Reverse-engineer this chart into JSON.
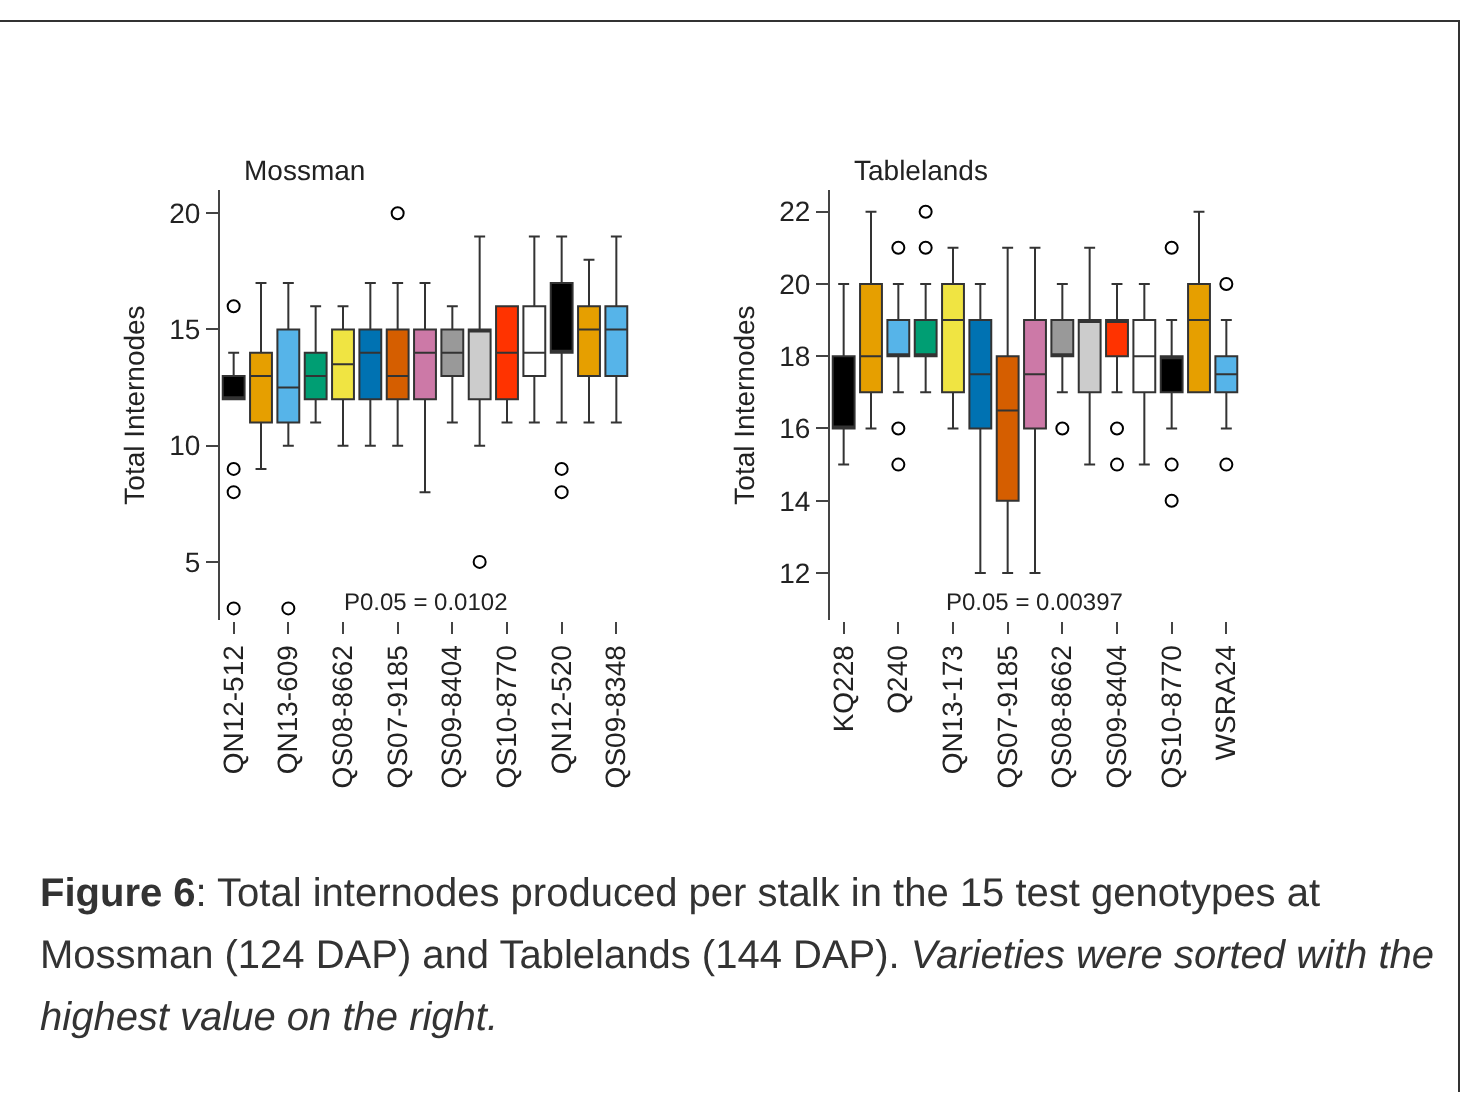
{
  "chart_data": [
    {
      "type": "box",
      "title": "Mossman",
      "ylabel": "Total Internodes",
      "categories": [
        "QN12-512",
        null,
        "QN13-609",
        null,
        "QS08-8662",
        null,
        "QS07-9185",
        null,
        "QS09-8404",
        null,
        "QS10-8770",
        null,
        "QN12-520",
        null,
        "QS09-8348"
      ],
      "colors": [
        "#000000",
        "#e69f00",
        "#56b4e9",
        "#009e73",
        "#f0e442",
        "#0072b2",
        "#d55e00",
        "#cc79a7",
        "#999999",
        "#cccccc",
        "#ff3300",
        "#ffffff",
        "#000000",
        "#e69f00",
        "#56b4e9"
      ],
      "boxes": [
        {
          "low": 12,
          "q1": 12,
          "median": 12,
          "q3": 13,
          "high": 14,
          "outliers": [
            16,
            9,
            8,
            3
          ]
        },
        {
          "low": 9,
          "q1": 11,
          "median": 13,
          "q3": 14,
          "high": 17
        },
        {
          "low": 10,
          "q1": 11,
          "median": 12.5,
          "q3": 15,
          "high": 17,
          "outliers": [
            3
          ]
        },
        {
          "low": 11,
          "q1": 12,
          "median": 13,
          "q3": 14,
          "high": 16
        },
        {
          "low": 10,
          "q1": 12,
          "median": 13.5,
          "q3": 15,
          "high": 16
        },
        {
          "low": 10,
          "q1": 12,
          "median": 14,
          "q3": 15,
          "high": 17
        },
        {
          "low": 10,
          "q1": 12,
          "median": 13,
          "q3": 15,
          "high": 17,
          "outliers": [
            20
          ]
        },
        {
          "low": 8,
          "q1": 12,
          "median": 14,
          "q3": 15,
          "high": 17
        },
        {
          "low": 11,
          "q1": 13,
          "median": 14,
          "q3": 15,
          "high": 16
        },
        {
          "low": 10,
          "q1": 12,
          "median": 15,
          "q3": 15,
          "high": 19,
          "outliers": [
            5
          ]
        },
        {
          "low": 11,
          "q1": 12,
          "median": 14,
          "q3": 16,
          "high": 16
        },
        {
          "low": 11,
          "q1": 13,
          "median": 14,
          "q3": 16,
          "high": 19
        },
        {
          "low": 11,
          "q1": 14,
          "median": 14,
          "q3": 17,
          "high": 19,
          "outliers": [
            9,
            8
          ]
        },
        {
          "low": 11,
          "q1": 13,
          "median": 15,
          "q3": 16,
          "high": 18
        },
        {
          "low": 11,
          "q1": 13,
          "median": 15,
          "q3": 16,
          "high": 19
        }
      ],
      "ylim": [
        2.5,
        21
      ],
      "yticks": [
        5,
        10,
        15,
        20
      ],
      "grid": false,
      "annotations": [
        "P0.05 = 0.0102"
      ]
    },
    {
      "type": "box",
      "title": "Tablelands",
      "ylabel": "Total Internodes",
      "categories": [
        "KQ228",
        null,
        "Q240",
        null,
        "QN13-173",
        null,
        "QS07-9185",
        null,
        "QS08-8662",
        null,
        "QS09-8404",
        null,
        "QS10-8770",
        null,
        "WSRA24"
      ],
      "colors": [
        "#000000",
        "#e69f00",
        "#56b4e9",
        "#009e73",
        "#f0e442",
        "#0072b2",
        "#d55e00",
        "#cc79a7",
        "#999999",
        "#cccccc",
        "#ff3300",
        "#ffffff",
        "#000000",
        "#e69f00",
        "#56b4e9"
      ],
      "boxes": [
        {
          "low": 15,
          "q1": 16,
          "median": 16,
          "q3": 18,
          "high": 20
        },
        {
          "low": 16,
          "q1": 17,
          "median": 18,
          "q3": 20,
          "high": 22
        },
        {
          "low": 17,
          "q1": 18,
          "median": 18,
          "q3": 19,
          "high": 20,
          "outliers": [
            21,
            16,
            15
          ]
        },
        {
          "low": 17,
          "q1": 18,
          "median": 18,
          "q3": 19,
          "high": 20,
          "outliers": [
            22,
            21
          ]
        },
        {
          "low": 16,
          "q1": 17,
          "median": 19,
          "q3": 20,
          "high": 21
        },
        {
          "low": 12,
          "q1": 16,
          "median": 17.5,
          "q3": 19,
          "high": 20
        },
        {
          "low": 12,
          "q1": 14,
          "median": 16.5,
          "q3": 18,
          "high": 21
        },
        {
          "low": 12,
          "q1": 16,
          "median": 17.5,
          "q3": 19,
          "high": 21
        },
        {
          "low": 17,
          "q1": 18,
          "median": 18,
          "q3": 19,
          "high": 20,
          "outliers": [
            16
          ]
        },
        {
          "low": 15,
          "q1": 17,
          "median": 19,
          "q3": 19,
          "high": 21
        },
        {
          "low": 17,
          "q1": 18,
          "median": 19,
          "q3": 19,
          "high": 20,
          "outliers": [
            16,
            15
          ]
        },
        {
          "low": 15,
          "q1": 17,
          "median": 18,
          "q3": 19,
          "high": 20
        },
        {
          "low": 16,
          "q1": 17,
          "median": 18,
          "q3": 18,
          "high": 19,
          "outliers": [
            21,
            15,
            14
          ]
        },
        {
          "low": 17,
          "q1": 17,
          "median": 19,
          "q3": 20,
          "high": 22
        },
        {
          "low": 16,
          "q1": 17,
          "median": 17.5,
          "q3": 18,
          "high": 19,
          "outliers": [
            20,
            15
          ]
        }
      ],
      "ylim": [
        10.7,
        22.6
      ],
      "yticks": [
        12,
        14,
        16,
        18,
        20,
        22
      ],
      "grid": false,
      "annotations": [
        "P0.05 = 0.00397",
        "Figure 6",
        ": Total internodes produced per stalk in the 15 test genotypes at Mossman (124 DAP) and Tablelands (144 DAP). ",
        "Varieties were sorted with the highest value on the right."
      ]
    }
  ]
}
